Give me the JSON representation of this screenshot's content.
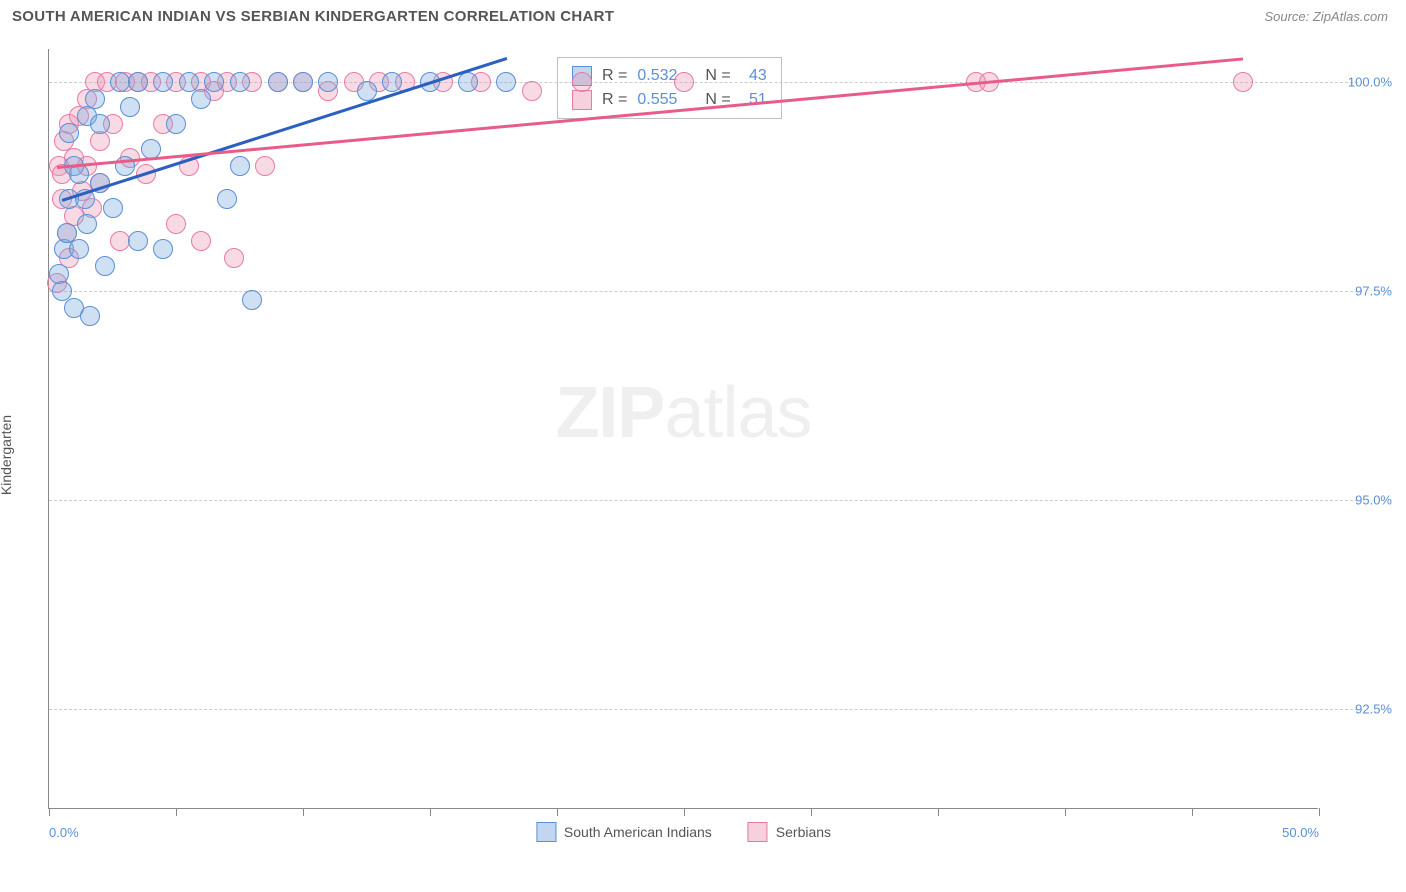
{
  "header": {
    "title": "SOUTH AMERICAN INDIAN VS SERBIAN KINDERGARTEN CORRELATION CHART",
    "source": "Source: ZipAtlas.com"
  },
  "axes": {
    "y_label": "Kindergarten",
    "ylim": [
      91.3,
      100.4
    ],
    "yticks": [
      92.5,
      95.0,
      97.5,
      100.0
    ],
    "ytick_labels": [
      "92.5%",
      "95.0%",
      "97.5%",
      "100.0%"
    ],
    "xlim": [
      0,
      50
    ],
    "xticks": [
      0,
      5,
      10,
      15,
      20,
      25,
      30,
      35,
      40,
      45,
      50
    ],
    "xtick_labels": {
      "0": "0.0%",
      "50": "50.0%"
    }
  },
  "colors": {
    "series_a_fill": "rgba(120,165,220,0.35)",
    "series_a_stroke": "#5b8fd6",
    "series_b_fill": "rgba(235,150,180,0.35)",
    "series_b_stroke": "#e87ba5",
    "trend_a": "#2b5fc0",
    "trend_b": "#e85b8a",
    "grid": "#cccccc",
    "axis": "#888888",
    "tick_text": "#5b8fd6",
    "title_text": "#555555",
    "background": "#ffffff"
  },
  "marker": {
    "radius": 10,
    "border_width": 1.5,
    "opacity": 0.35
  },
  "series": [
    {
      "name": "South American Indians",
      "key": "a",
      "R": "0.532",
      "N": "43",
      "trend": {
        "x1": 0.5,
        "y1": 98.6,
        "x2": 18.0,
        "y2": 100.3
      },
      "points": [
        [
          0.4,
          97.7
        ],
        [
          0.5,
          97.5
        ],
        [
          0.6,
          98.0
        ],
        [
          0.7,
          98.2
        ],
        [
          0.8,
          98.6
        ],
        [
          0.8,
          99.4
        ],
        [
          1.0,
          97.3
        ],
        [
          1.0,
          99.0
        ],
        [
          1.2,
          98.9
        ],
        [
          1.2,
          98.0
        ],
        [
          1.4,
          98.6
        ],
        [
          1.5,
          99.6
        ],
        [
          1.5,
          98.3
        ],
        [
          1.6,
          97.2
        ],
        [
          1.8,
          99.8
        ],
        [
          2.0,
          98.8
        ],
        [
          2.0,
          99.5
        ],
        [
          2.2,
          97.8
        ],
        [
          2.5,
          98.5
        ],
        [
          2.8,
          100.0
        ],
        [
          3.0,
          99.0
        ],
        [
          3.2,
          99.7
        ],
        [
          3.5,
          100.0
        ],
        [
          3.5,
          98.1
        ],
        [
          4.0,
          99.2
        ],
        [
          4.5,
          98.0
        ],
        [
          4.5,
          100.0
        ],
        [
          5.0,
          99.5
        ],
        [
          5.5,
          100.0
        ],
        [
          6.0,
          99.8
        ],
        [
          6.5,
          100.0
        ],
        [
          7.0,
          98.6
        ],
        [
          7.5,
          99.0
        ],
        [
          7.5,
          100.0
        ],
        [
          8.0,
          97.4
        ],
        [
          9.0,
          100.0
        ],
        [
          10.0,
          100.0
        ],
        [
          11.0,
          100.0
        ],
        [
          12.5,
          99.9
        ],
        [
          13.5,
          100.0
        ],
        [
          15.0,
          100.0
        ],
        [
          16.5,
          100.0
        ],
        [
          18.0,
          100.0
        ]
      ]
    },
    {
      "name": "Serbians",
      "key": "b",
      "R": "0.555",
      "N": "51",
      "trend": {
        "x1": 0.3,
        "y1": 99.0,
        "x2": 47.0,
        "y2": 100.3
      },
      "points": [
        [
          0.3,
          97.6
        ],
        [
          0.4,
          99.0
        ],
        [
          0.5,
          98.6
        ],
        [
          0.5,
          98.9
        ],
        [
          0.6,
          99.3
        ],
        [
          0.7,
          98.2
        ],
        [
          0.8,
          99.5
        ],
        [
          0.8,
          97.9
        ],
        [
          1.0,
          99.1
        ],
        [
          1.0,
          98.4
        ],
        [
          1.2,
          99.6
        ],
        [
          1.3,
          98.7
        ],
        [
          1.5,
          99.8
        ],
        [
          1.5,
          99.0
        ],
        [
          1.7,
          98.5
        ],
        [
          1.8,
          100.0
        ],
        [
          2.0,
          99.3
        ],
        [
          2.0,
          98.8
        ],
        [
          2.3,
          100.0
        ],
        [
          2.5,
          99.5
        ],
        [
          2.8,
          98.1
        ],
        [
          3.0,
          100.0
        ],
        [
          3.2,
          99.1
        ],
        [
          3.5,
          100.0
        ],
        [
          3.8,
          98.9
        ],
        [
          4.0,
          100.0
        ],
        [
          4.5,
          99.5
        ],
        [
          5.0,
          100.0
        ],
        [
          5.0,
          98.3
        ],
        [
          5.5,
          99.0
        ],
        [
          6.0,
          100.0
        ],
        [
          6.0,
          98.1
        ],
        [
          6.5,
          99.9
        ],
        [
          7.0,
          100.0
        ],
        [
          7.3,
          97.9
        ],
        [
          8.0,
          100.0
        ],
        [
          8.5,
          99.0
        ],
        [
          9.0,
          100.0
        ],
        [
          10.0,
          100.0
        ],
        [
          11.0,
          99.9
        ],
        [
          12.0,
          100.0
        ],
        [
          13.0,
          100.0
        ],
        [
          14.0,
          100.0
        ],
        [
          15.5,
          100.0
        ],
        [
          17.0,
          100.0
        ],
        [
          19.0,
          99.9
        ],
        [
          21.0,
          100.0
        ],
        [
          25.0,
          100.0
        ],
        [
          36.5,
          100.0
        ],
        [
          37.0,
          100.0
        ],
        [
          47.0,
          100.0
        ]
      ]
    }
  ],
  "legend": {
    "stats_prefix_r": "R =",
    "stats_prefix_n": "N ="
  },
  "watermark": {
    "bold": "ZIP",
    "rest": "atlas"
  }
}
